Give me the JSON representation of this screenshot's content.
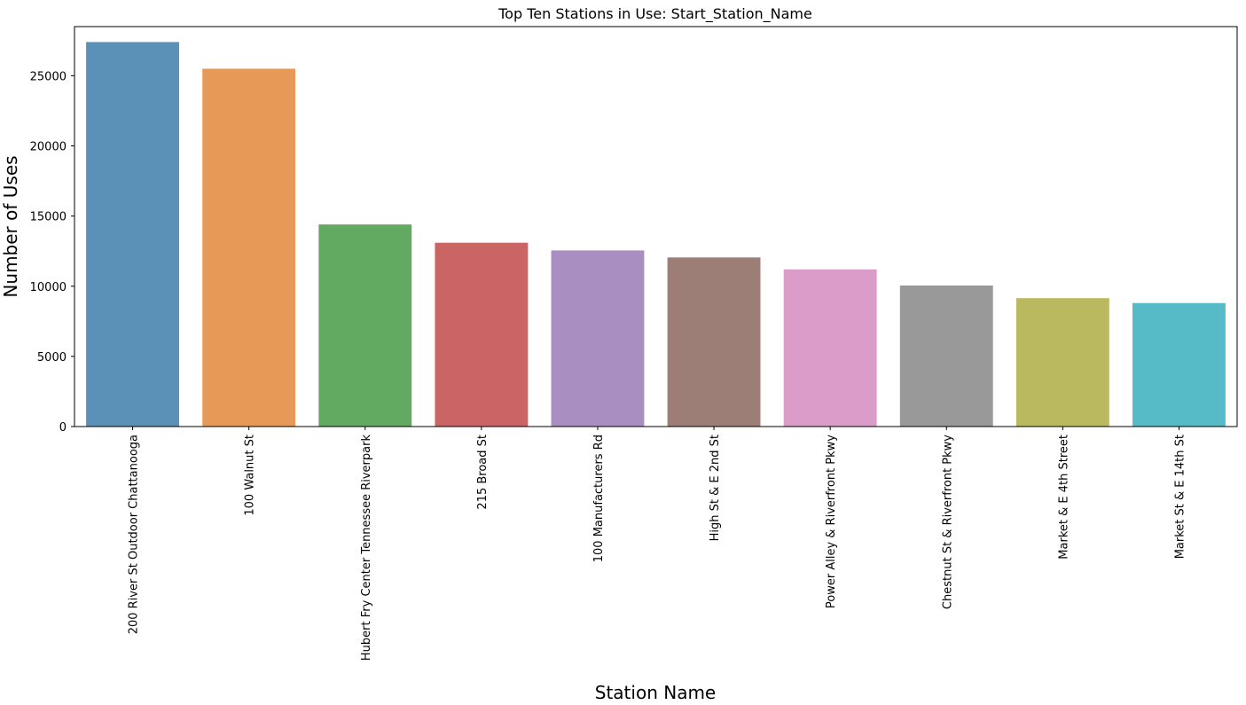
{
  "chart_data": {
    "type": "bar",
    "title": "Top Ten Stations in Use: Start_Station_Name",
    "xlabel": "Station Name",
    "ylabel": "Number of Uses",
    "ylim": [
      0,
      28500
    ],
    "yticks": [
      0,
      5000,
      10000,
      15000,
      20000,
      25000
    ],
    "grid": false,
    "legend": "none",
    "categories": [
      "200 River St Outdoor Chattanooga",
      "100 Walnut St",
      "Hubert Fry Center Tennessee Riverpark",
      "215 Broad St",
      "100 Manufacturers Rd",
      "High St & E 2nd St",
      "Power Alley & Riverfront Pkwy",
      "Chestnut St & Riverfront Pkwy",
      "Market & E 4th Street",
      "Market St & E 14th St"
    ],
    "values": [
      27400,
      25500,
      14400,
      13100,
      12550,
      12050,
      11200,
      10050,
      9150,
      8800
    ],
    "colors": [
      "#5b91b6",
      "#e79a57",
      "#62aa62",
      "#cb6464",
      "#a98fc1",
      "#9d7e76",
      "#dc9cca",
      "#999999",
      "#bbb95f",
      "#57bac7"
    ]
  }
}
